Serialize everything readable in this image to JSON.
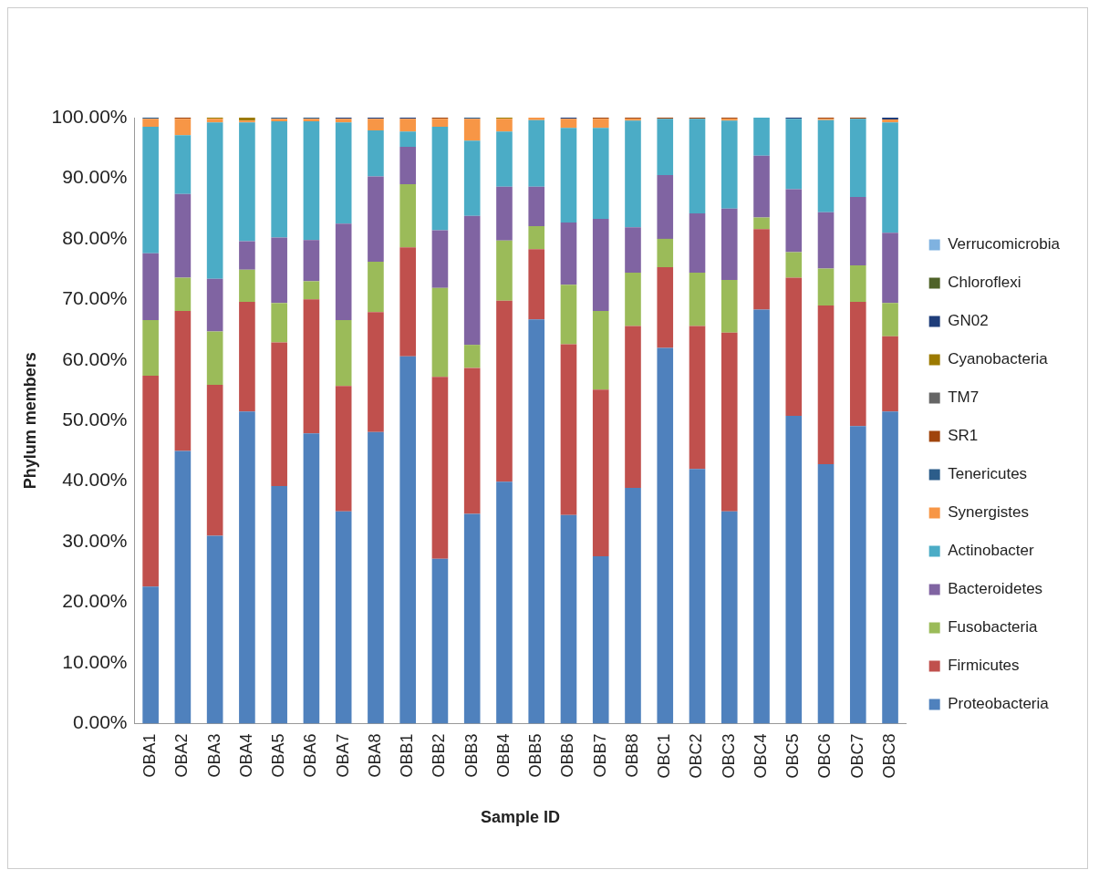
{
  "chart_data": {
    "type": "bar",
    "stacked": true,
    "xlabel": "Sample ID",
    "ylabel": "Phylum members",
    "categories": [
      "OBA1",
      "OBA2",
      "OBA3",
      "OBA4",
      "OBA5",
      "OBA6",
      "OBA7",
      "OBA8",
      "OBB1",
      "OBB2",
      "OBB3",
      "OBB4",
      "OBB5",
      "OBB6",
      "OBB7",
      "OBB8",
      "OBC1",
      "OBC2",
      "OBC3",
      "OBC4",
      "OBC5",
      "OBC6",
      "OBC7",
      "OBC8"
    ],
    "ylim": [
      0,
      100
    ],
    "yticks": [
      {
        "value": 0,
        "label": "0.00%"
      },
      {
        "value": 10,
        "label": "10.00%"
      },
      {
        "value": 20,
        "label": "20.00%"
      },
      {
        "value": 30,
        "label": "30.00%"
      },
      {
        "value": 40,
        "label": "40.00%"
      },
      {
        "value": 50,
        "label": "50.00%"
      },
      {
        "value": 60,
        "label": "60.00%"
      },
      {
        "value": 70,
        "label": "70.00%"
      },
      {
        "value": 80,
        "label": "80.00%"
      },
      {
        "value": 90,
        "label": "90.00%"
      },
      {
        "value": 100,
        "label": "100.00%"
      }
    ],
    "grid": false,
    "legend": "right",
    "series": [
      {
        "name": "Proteobacteria",
        "color": "#4f81bd",
        "values": [
          22.6,
          45.0,
          31.0,
          51.5,
          39.2,
          47.9,
          35.0,
          48.1,
          60.6,
          27.2,
          34.6,
          39.9,
          66.7,
          34.4,
          27.6,
          38.9,
          62.0,
          42.0,
          35.0,
          68.3,
          50.8,
          42.8,
          49.1,
          51.5
        ]
      },
      {
        "name": "Firmicutes",
        "color": "#c0504d",
        "values": [
          34.8,
          23.1,
          24.9,
          18.1,
          23.7,
          22.1,
          20.7,
          19.8,
          18.0,
          30.0,
          24.1,
          29.9,
          11.6,
          28.2,
          27.5,
          26.7,
          13.3,
          23.6,
          29.5,
          13.3,
          22.8,
          26.2,
          20.5,
          12.4
        ]
      },
      {
        "name": "Fusobacteria",
        "color": "#9bbb59",
        "values": [
          9.2,
          5.5,
          8.8,
          5.3,
          6.5,
          3.0,
          10.9,
          8.3,
          10.4,
          14.7,
          3.8,
          9.9,
          3.8,
          9.8,
          13.0,
          8.8,
          4.7,
          8.8,
          8.7,
          1.9,
          4.2,
          6.1,
          6.0,
          5.5
        ]
      },
      {
        "name": "Bacteroidetes",
        "color": "#8064a2",
        "values": [
          11.0,
          13.8,
          8.7,
          4.7,
          10.8,
          6.8,
          15.9,
          14.1,
          6.2,
          9.5,
          21.3,
          8.9,
          6.5,
          10.3,
          15.2,
          7.5,
          10.5,
          9.8,
          11.8,
          10.2,
          10.4,
          9.3,
          11.3,
          11.6
        ]
      },
      {
        "name": "Actinobacter",
        "color": "#4bacc6",
        "values": [
          20.9,
          9.7,
          25.8,
          19.6,
          19.2,
          19.6,
          16.7,
          7.6,
          2.5,
          17.1,
          12.4,
          9.1,
          11.0,
          15.6,
          15.0,
          17.6,
          9.3,
          15.6,
          14.5,
          6.3,
          11.6,
          15.2,
          12.9,
          18.2
        ]
      },
      {
        "name": "Synergistes",
        "color": "#f79646",
        "values": [
          1.3,
          2.7,
          0.6,
          0.3,
          0.4,
          0.4,
          0.6,
          1.9,
          2.1,
          1.3,
          3.6,
          2.1,
          0.4,
          1.5,
          1.5,
          0.3,
          0,
          0,
          0.3,
          0,
          0,
          0.2,
          0,
          0.5
        ]
      },
      {
        "name": "Tenericutes",
        "color": "#2c5d8a",
        "values": [
          0.2,
          0,
          0,
          0,
          0.2,
          0.2,
          0,
          0,
          0,
          0,
          0.2,
          0,
          0,
          0,
          0,
          0,
          0,
          0,
          0,
          0,
          0,
          0,
          0,
          0
        ]
      },
      {
        "name": "SR1",
        "color": "#a0440c",
        "values": [
          0,
          0.2,
          0,
          0,
          0,
          0,
          0,
          0,
          0,
          0.2,
          0,
          0,
          0,
          0,
          0.2,
          0.2,
          0.2,
          0.2,
          0.2,
          0,
          0,
          0.2,
          0.2,
          0
        ]
      },
      {
        "name": "TM7",
        "color": "#666666",
        "values": [
          0,
          0,
          0,
          0,
          0,
          0,
          0,
          0,
          0,
          0,
          0,
          0,
          0,
          0,
          0,
          0,
          0,
          0,
          0,
          0,
          0,
          0,
          0,
          0
        ]
      },
      {
        "name": "Cyanobacteria",
        "color": "#9c7a00",
        "values": [
          0,
          0,
          0.2,
          0.5,
          0,
          0,
          0,
          0,
          0,
          0,
          0,
          0.2,
          0,
          0,
          0,
          0,
          0,
          0,
          0,
          0,
          0,
          0,
          0,
          0
        ]
      },
      {
        "name": "GN02",
        "color": "#1f3d7a",
        "values": [
          0,
          0,
          0,
          0,
          0,
          0,
          0.2,
          0.2,
          0.2,
          0,
          0,
          0,
          0,
          0.2,
          0,
          0,
          0,
          0,
          0,
          0,
          0.2,
          0,
          0,
          0.3
        ]
      },
      {
        "name": "Chloroflexi",
        "color": "#4f6228",
        "values": [
          0,
          0,
          0,
          0,
          0,
          0,
          0,
          0,
          0,
          0,
          0,
          0,
          0,
          0,
          0,
          0,
          0,
          0,
          0,
          0,
          0,
          0,
          0,
          0
        ]
      },
      {
        "name": "Verrucomicrobia",
        "color": "#7fb2e0",
        "values": [
          0,
          0,
          0,
          0,
          0,
          0,
          0,
          0,
          0,
          0,
          0,
          0,
          0,
          0,
          0,
          0,
          0,
          0,
          0,
          0,
          0,
          0,
          0,
          0
        ]
      }
    ]
  }
}
